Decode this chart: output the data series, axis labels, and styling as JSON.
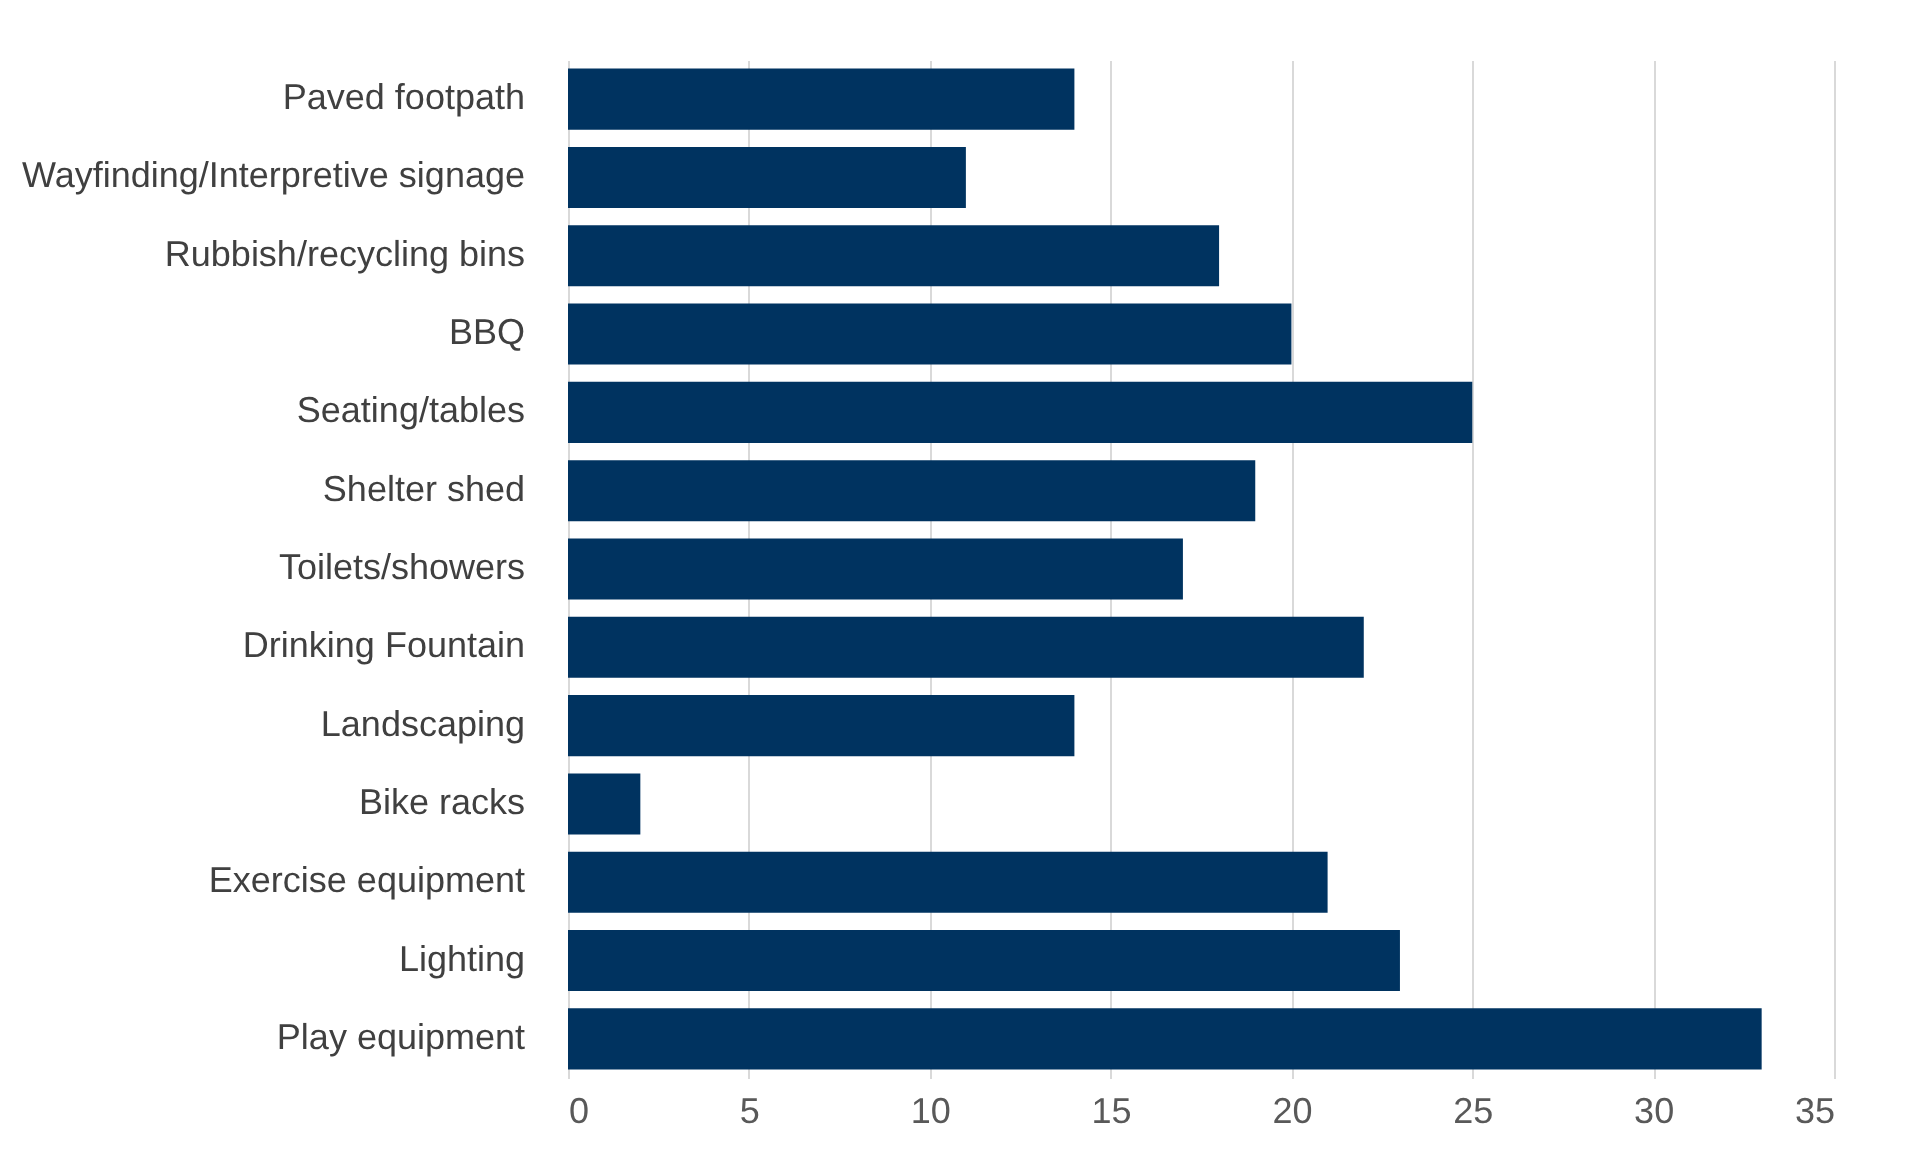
{
  "chart_data": {
    "type": "bar",
    "orientation": "horizontal",
    "categories": [
      "Paved footpath",
      "Wayfinding/Interpretive signage",
      "Rubbish/recycling bins",
      "BBQ",
      "Seating/tables",
      "Shelter shed",
      "Toilets/showers",
      "Drinking Fountain",
      "Landscaping",
      "Bike racks",
      "Exercise equipment",
      "Lighting",
      "Play equipment"
    ],
    "values": [
      14,
      11,
      18,
      20,
      25,
      19,
      17,
      22,
      14,
      2,
      21,
      23,
      33
    ],
    "color": "#003360",
    "xlim": [
      0,
      35
    ],
    "xticks": [
      0,
      5,
      10,
      15,
      20,
      25,
      30,
      35
    ],
    "grid": "x"
  }
}
